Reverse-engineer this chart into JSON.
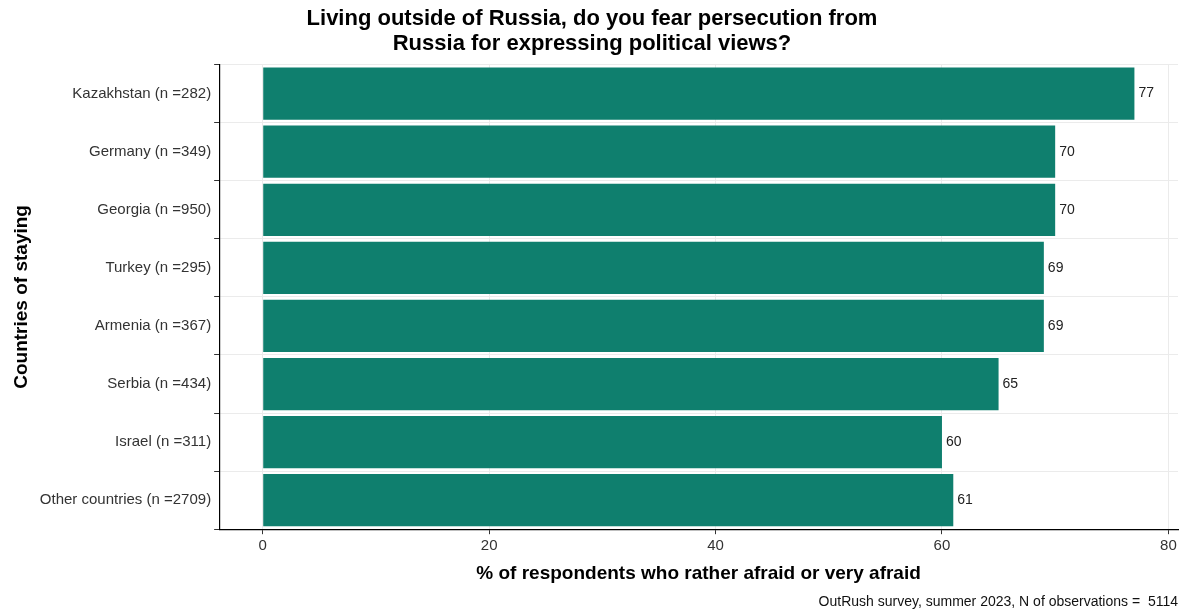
{
  "chart_data": {
    "type": "bar",
    "orientation": "horizontal",
    "title": "Living outside of Russia, do you fear persecution from Russia for expressing political views?",
    "xlabel": "% of respondents who rather afraid or very afraid",
    "ylabel": "Countries of staying",
    "categories": [
      "Kazakhstan (n =282)",
      "Germany (n =349)",
      "Georgia (n =950)",
      "Turkey (n =295)",
      "Armenia (n =367)",
      "Serbia (n =434)",
      "Israel (n =311)",
      "Other countries (n =2709)"
    ],
    "values": [
      77,
      70,
      70,
      69,
      69,
      65,
      60,
      61
    ],
    "color": "#0f7f6e",
    "data_labels": true,
    "xlim": [
      -3.85,
      80.85
    ],
    "xticks": [
      0,
      20,
      40,
      60,
      80
    ],
    "grid": true,
    "legend": false,
    "annotations": [
      "OutRush survey, summer 2023, N of observations =  5114"
    ]
  }
}
